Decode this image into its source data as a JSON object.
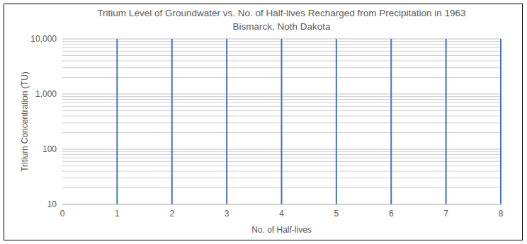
{
  "chart_data": {
    "type": "line",
    "title": "Tritium Level of Groundwater vs. No. of Half-lives Recharged from Precipitation in 1963",
    "subtitle": "Bismarck, Noth Dakota",
    "x_label": "No. of Half-lives",
    "y_label": "Tritium Concentration (TU)",
    "series": [],
    "xlim": [
      0,
      8
    ],
    "xticks": [
      0,
      1,
      2,
      3,
      4,
      5,
      6,
      7,
      8
    ],
    "ylim": [
      10,
      10000
    ],
    "yticks": [
      10,
      100,
      {
        "value": 1000,
        "label": "1,000"
      },
      {
        "value": 10000,
        "label": "10,000"
      }
    ],
    "log": "y",
    "grid": true,
    "color": "#4472c4"
  }
}
